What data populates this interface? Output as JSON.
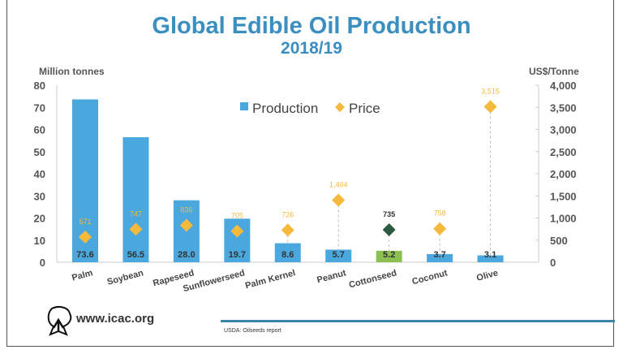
{
  "chart_data": {
    "type": "bar",
    "title": "Global Edible Oil Production",
    "subtitle": "2018/19",
    "categories": [
      "Palm",
      "Soybean",
      "Rapeseed",
      "Sunflowerseed",
      "Palm Kernel",
      "Peanut",
      "Cottonseed",
      "Coconut",
      "Olive"
    ],
    "series": [
      {
        "name": "Production",
        "type": "bar",
        "axis": "left",
        "values": [
          73.6,
          56.5,
          28.0,
          19.7,
          8.6,
          5.7,
          5.2,
          3.7,
          3.1
        ],
        "labels": [
          "73.6",
          "56.5",
          "28.0",
          "19.7",
          "8.6",
          "5.7",
          "5.2",
          "3.7",
          "3.1"
        ]
      },
      {
        "name": "Price",
        "type": "scatter",
        "axis": "right",
        "values": [
          571,
          747,
          836,
          705,
          726,
          1404,
          735,
          758,
          3515
        ],
        "labels": [
          "571",
          "747",
          "836",
          "705",
          "726",
          "1,404",
          "735",
          "758",
          "3,515"
        ]
      }
    ],
    "ylabel": "Million tonnes",
    "ylim": [
      0,
      80
    ],
    "yticks": [
      "0",
      "10",
      "20",
      "30",
      "40",
      "50",
      "60",
      "70",
      "80"
    ],
    "y2label": "US$/Tonne",
    "y2lim": [
      0,
      4000
    ],
    "y2ticks": [
      "0",
      "500",
      "1,000",
      "1,500",
      "2,000",
      "2,500",
      "3,000",
      "3,500",
      "4,000"
    ],
    "legend": {
      "placement": "top-center",
      "entries": [
        "Production",
        "Price"
      ]
    },
    "grid": false,
    "highlight_category": "Cottonseed",
    "colors": {
      "bar": "#4aa8de",
      "bar_highlight": "#8cc152",
      "price": "#f5b93c",
      "price_highlight": "#2b5a41",
      "price_label": "#f5b93c",
      "title": "#3a8fc0"
    }
  },
  "footer": {
    "site": "www.icac.org",
    "source": "USDA: Oilseeds report"
  }
}
